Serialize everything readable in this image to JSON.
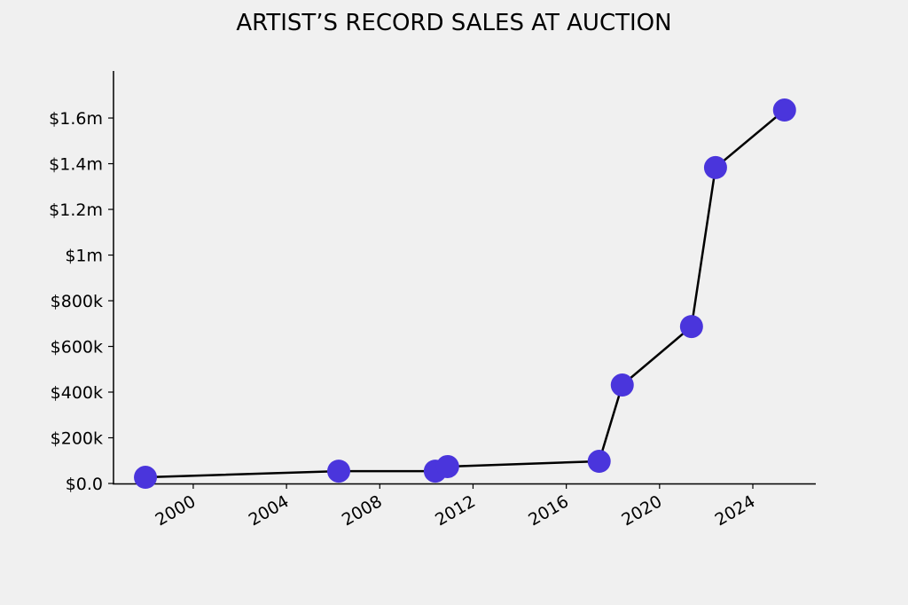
{
  "chart_data": {
    "type": "line",
    "title": "ARTIST’S RECORD SALES AT AUCTION",
    "x": [
      1997.95,
      2006.24,
      2010.38,
      2010.91,
      2017.41,
      2018.4,
      2021.37,
      2022.4,
      2025.36
    ],
    "values": [
      27000,
      54000,
      54000,
      74000,
      97000,
      431000,
      687000,
      1383000,
      1635000
    ],
    "color": "#4a35dc",
    "line_color": "#000000",
    "xlim": [
      1996.58,
      2026.7
    ],
    "xticks": [
      2000,
      2004,
      2008,
      2012,
      2016,
      2020,
      2024
    ],
    "ylim": [
      0,
      1806000
    ],
    "yticks": [
      {
        "value": 0,
        "label": "$0.0"
      },
      {
        "value": 200000,
        "label": "$200k"
      },
      {
        "value": 400000,
        "label": "$400k"
      },
      {
        "value": 600000,
        "label": "$600k"
      },
      {
        "value": 800000,
        "label": "$800k"
      },
      {
        "value": 1000000,
        "label": "$1m"
      },
      {
        "value": 1200000,
        "label": "$1.2m"
      },
      {
        "value": 1400000,
        "label": "$1.4m"
      },
      {
        "value": 1600000,
        "label": "$1.6m"
      }
    ]
  }
}
